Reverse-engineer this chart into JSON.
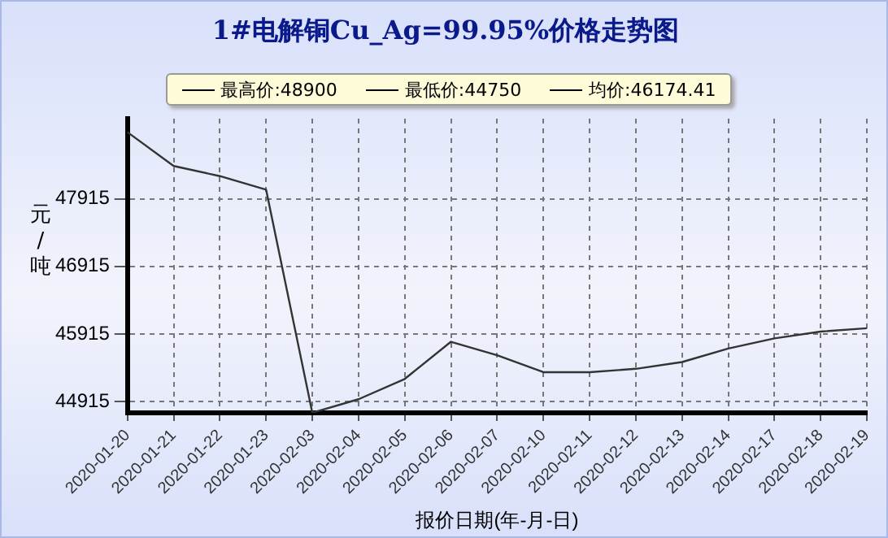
{
  "chart_data": {
    "type": "line",
    "title": "1#电解铜Cu_Ag=99.95%价格走势图",
    "xlabel": "报价日期(年-月-日)",
    "ylabel": "元/吨",
    "annotations": [
      "最高价:48900",
      "最低价:44750",
      "均价:46174.41"
    ],
    "categories": [
      "2020-01-20",
      "2020-01-21",
      "2020-01-22",
      "2020-01-23",
      "2020-02-03",
      "2020-02-04",
      "2020-02-05",
      "2020-02-06",
      "2020-02-07",
      "2020-02-10",
      "2020-02-11",
      "2020-02-12",
      "2020-02-13",
      "2020-02-14",
      "2020-02-17",
      "2020-02-18",
      "2020-02-19"
    ],
    "series": [
      {
        "color": "#333333",
        "values": [
          48900,
          48400,
          48250,
          48050,
          44750,
          44950,
          45250,
          45800,
          45600,
          45350,
          45350,
          45400,
          45500,
          45700,
          45850,
          45950,
          46000
        ]
      }
    ],
    "ylim": [
      44750,
      49100
    ],
    "yticks": [
      44915,
      45915,
      46915,
      47915
    ],
    "grid": true,
    "legend": false,
    "marker": "none",
    "line_style": "solid"
  }
}
